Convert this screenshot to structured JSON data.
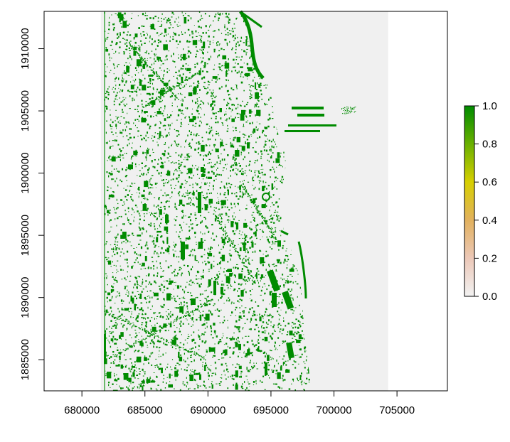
{
  "map": {
    "x_range": [
      677000,
      709000
    ],
    "y_range": [
      1882500,
      1913000
    ],
    "raster_extent": {
      "xmin": 681500,
      "xmax": 704300,
      "ymin": 1882500,
      "ymax": 1913000
    },
    "x_ticks": [
      {
        "value": 680000,
        "label": "680000"
      },
      {
        "value": 685000,
        "label": "685000"
      },
      {
        "value": 690000,
        "label": "690000"
      },
      {
        "value": 695000,
        "label": "695000"
      },
      {
        "value": 700000,
        "label": "700000"
      },
      {
        "value": 705000,
        "label": "705000"
      }
    ],
    "y_ticks": [
      {
        "value": 1885000,
        "label": "1885000"
      },
      {
        "value": 1890000,
        "label": "1890000"
      },
      {
        "value": 1895000,
        "label": "1895000"
      },
      {
        "value": 1900000,
        "label": "1900000"
      },
      {
        "value": 1905000,
        "label": "1905000"
      },
      {
        "value": 1910000,
        "label": "1910000"
      }
    ],
    "colors": {
      "background": "#f0f0f0",
      "feature": "#008b00",
      "axis": "#000000"
    }
  },
  "legend": {
    "ticks": [
      {
        "value": 0.0,
        "label": "0.0"
      },
      {
        "value": 0.2,
        "label": "0.2"
      },
      {
        "value": 0.4,
        "label": "0.4"
      },
      {
        "value": 0.6,
        "label": "0.6"
      },
      {
        "value": 0.8,
        "label": "0.8"
      },
      {
        "value": 1.0,
        "label": "1.0"
      }
    ],
    "color_stops": [
      {
        "value": 0.0,
        "color": "#f2f2f2"
      },
      {
        "value": 0.2,
        "color": "#ecc8b8"
      },
      {
        "value": 0.4,
        "color": "#e2b15e"
      },
      {
        "value": 0.6,
        "color": "#d7cf00"
      },
      {
        "value": 0.8,
        "color": "#69b000"
      },
      {
        "value": 1.0,
        "color": "#008b00"
      }
    ]
  }
}
